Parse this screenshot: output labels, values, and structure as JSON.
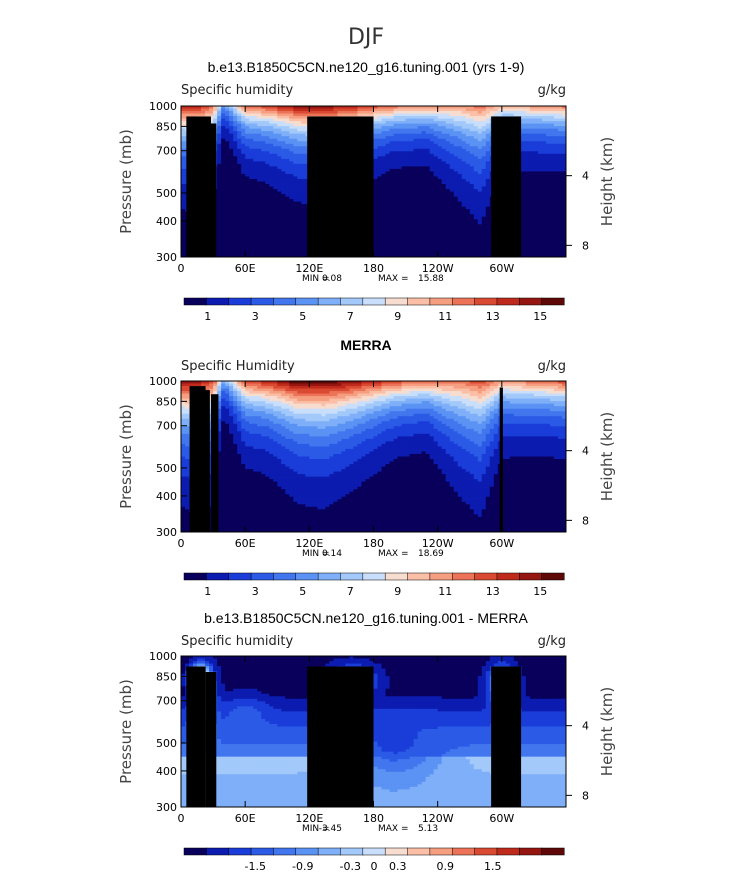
{
  "figure": {
    "season": "DJF",
    "variable_units": "g/kg"
  },
  "chart_data": [
    {
      "type": "heatmap",
      "title": "b.e13.B1850C5CN.ne120_g16.tuning.001 (yrs 1-9)",
      "field_label": "Specific humidity",
      "units": "g/kg",
      "xlabel": "",
      "ylabel": "Pressure (mb)",
      "ylabel_right": "Height (km)",
      "x_ticks": [
        "0",
        "60E",
        "120E",
        "180",
        "120W",
        "60W"
      ],
      "x_tick_values": [
        0,
        60,
        120,
        180,
        240,
        300
      ],
      "xlim": [
        0,
        360
      ],
      "y_ticks": [
        "300",
        "400",
        "500",
        "700",
        "850",
        "1000"
      ],
      "y_tick_values": [
        300,
        400,
        500,
        700,
        850,
        1000
      ],
      "ylim": [
        1000,
        300
      ],
      "height_ticks": [
        "8",
        "4"
      ],
      "height_tick_values": [
        8,
        4
      ],
      "stats": {
        "min_label": "MIN =",
        "min": "0.08",
        "max_label": "MAX =",
        "max": "15.88"
      },
      "colorbar": {
        "colors": [
          "#08005a",
          "#0c1bb0",
          "#1a3cd8",
          "#2a5ae6",
          "#4276ee",
          "#5b93f4",
          "#7eaff8",
          "#a3c9fb",
          "#c9defb",
          "#f7dcd0",
          "#fabfa6",
          "#f69e80",
          "#ec7357",
          "#da4a32",
          "#bf2a1c",
          "#951611",
          "#5e0808"
        ],
        "labels": [
          "1",
          "3",
          "5",
          "7",
          "9",
          "11",
          "13",
          "15"
        ],
        "label_positions": [
          1,
          3,
          5,
          7,
          9,
          11,
          13,
          15
        ],
        "range": [
          0,
          16
        ]
      },
      "profile": {
        "longitudes": [
          0,
          15,
          30,
          40,
          60,
          80,
          110,
          135,
          160,
          180,
          200,
          230,
          260,
          280,
          300,
          330,
          360
        ],
        "surface_gkg": [
          14,
          14,
          12,
          5,
          12,
          13,
          15,
          15,
          14,
          13,
          12,
          11,
          11,
          12,
          10,
          11,
          12
        ],
        "scale_height_km": [
          2.2,
          2.3,
          2.2,
          1.0,
          1.6,
          1.7,
          2.0,
          2.1,
          1.9,
          1.6,
          1.4,
          1.4,
          2.2,
          2.7,
          1.6,
          1.5,
          1.5
        ]
      },
      "terrain": [
        {
          "lon_start": 5,
          "lon_end": 28,
          "top_hpa": 920
        },
        {
          "lon_start": 25,
          "lon_end": 33,
          "top_hpa": 870
        },
        {
          "lon_start": 118,
          "lon_end": 180,
          "top_hpa": 920
        },
        {
          "lon_start": 290,
          "lon_end": 318,
          "top_hpa": 920
        }
      ]
    },
    {
      "type": "heatmap",
      "title": "MERRA",
      "field_label": "Specific Humidity",
      "units": "g/kg",
      "xlabel": "",
      "ylabel": "Pressure (mb)",
      "ylabel_right": "Height (km)",
      "x_ticks": [
        "0",
        "60E",
        "120E",
        "180",
        "120W",
        "60W"
      ],
      "x_tick_values": [
        0,
        60,
        120,
        180,
        240,
        300
      ],
      "xlim": [
        0,
        360
      ],
      "y_ticks": [
        "300",
        "400",
        "500",
        "700",
        "850",
        "1000"
      ],
      "y_tick_values": [
        300,
        400,
        500,
        700,
        850,
        1000
      ],
      "ylim": [
        1000,
        300
      ],
      "height_ticks": [
        "8",
        "4"
      ],
      "height_tick_values": [
        8,
        4
      ],
      "stats": {
        "min_label": "MIN =",
        "min": "0.14",
        "max_label": "MAX =",
        "max": "18.69"
      },
      "colorbar": {
        "colors": [
          "#08005a",
          "#0c1bb0",
          "#1a3cd8",
          "#2a5ae6",
          "#4276ee",
          "#5b93f4",
          "#7eaff8",
          "#a3c9fb",
          "#c9defb",
          "#f7dcd0",
          "#fabfa6",
          "#f69e80",
          "#ec7357",
          "#da4a32",
          "#bf2a1c",
          "#951611",
          "#5e0808"
        ],
        "labels": [
          "1",
          "3",
          "5",
          "7",
          "9",
          "11",
          "13",
          "15"
        ],
        "label_positions": [
          1,
          3,
          5,
          7,
          9,
          11,
          13,
          15
        ],
        "range": [
          0,
          16
        ]
      },
      "profile": {
        "longitudes": [
          0,
          15,
          30,
          40,
          60,
          80,
          110,
          135,
          160,
          180,
          200,
          230,
          260,
          280,
          300,
          330,
          360
        ],
        "surface_gkg": [
          15,
          15,
          13,
          6,
          13,
          14,
          16,
          16,
          15,
          14,
          13,
          12,
          12,
          13,
          11,
          12,
          13
        ],
        "scale_height_km": [
          2.6,
          2.8,
          2.7,
          1.1,
          1.9,
          2.0,
          2.5,
          2.6,
          2.3,
          2.0,
          1.7,
          1.6,
          2.6,
          3.0,
          1.8,
          1.7,
          1.7
        ]
      },
      "terrain": [
        {
          "lon_start": 8,
          "lon_end": 23,
          "top_hpa": 960
        },
        {
          "lon_start": 20,
          "lon_end": 27,
          "top_hpa": 930
        },
        {
          "lon_start": 28,
          "lon_end": 35,
          "top_hpa": 900
        },
        {
          "lon_start": 298,
          "lon_end": 301,
          "top_hpa": 950
        }
      ]
    },
    {
      "type": "heatmap",
      "title": "b.e13.B1850C5CN.ne120_g16.tuning.001 - MERRA",
      "field_label": "Specific humidity",
      "units": "g/kg",
      "xlabel": "",
      "ylabel": "Pressure (mb)",
      "ylabel_right": "Height (km)",
      "x_ticks": [
        "0",
        "60E",
        "120E",
        "180",
        "120W",
        "60W"
      ],
      "x_tick_values": [
        0,
        60,
        120,
        180,
        240,
        300
      ],
      "xlim": [
        0,
        360
      ],
      "y_ticks": [
        "300",
        "400",
        "500",
        "700",
        "850",
        "1000"
      ],
      "y_tick_values": [
        300,
        400,
        500,
        700,
        850,
        1000
      ],
      "ylim": [
        1000,
        300
      ],
      "height_ticks": [
        "8",
        "4"
      ],
      "height_tick_values": [
        8,
        4
      ],
      "stats": {
        "min_label": "MIN =",
        "min": "-3.45",
        "max_label": "MAX =",
        "max": "5.13"
      },
      "colorbar": {
        "colors": [
          "#08005a",
          "#0c1bb0",
          "#1a3cd8",
          "#2a5ae6",
          "#4276ee",
          "#5b93f4",
          "#7eaff8",
          "#a3c9fb",
          "#c9defb",
          "#f7dcd0",
          "#fabfa6",
          "#f69e80",
          "#ec7357",
          "#da4a32",
          "#bf2a1c",
          "#951611",
          "#5e0808"
        ],
        "labels": [
          "-1.5",
          "-0.9",
          "-0.3",
          "0",
          "0.3",
          "0.9",
          "1.5"
        ],
        "label_positions": [
          -1.5,
          -0.9,
          -0.3,
          0,
          0.3,
          0.9,
          1.5
        ],
        "range": [
          -2.4,
          2.4
        ]
      },
      "difference": {
        "deep_negative": -2.2,
        "shallow_negative": -0.5,
        "features": [
          {
            "lon": 18,
            "hpa": 840,
            "value": 2.4,
            "spread_lon": 8,
            "spread_hpa": 80
          },
          {
            "lon": 22,
            "hpa": 700,
            "value": -0.2,
            "spread_lon": 10,
            "spread_hpa": 180
          },
          {
            "lon": 300,
            "hpa": 800,
            "value": -0.2,
            "spread_lon": 12,
            "spread_hpa": 120
          },
          {
            "lon": 160,
            "hpa": 820,
            "value": -0.7,
            "spread_lon": 20,
            "spread_hpa": 100
          },
          {
            "lon": 200,
            "hpa": 500,
            "value": -1.6,
            "spread_lon": 45,
            "spread_hpa": 120
          },
          {
            "lon": 60,
            "hpa": 620,
            "value": -1.4,
            "spread_lon": 20,
            "spread_hpa": 100
          }
        ]
      },
      "terrain": [
        {
          "lon_start": 5,
          "lon_end": 23,
          "top_hpa": 920
        },
        {
          "lon_start": 23,
          "lon_end": 33,
          "top_hpa": 880
        },
        {
          "lon_start": 118,
          "lon_end": 180,
          "top_hpa": 920
        },
        {
          "lon_start": 290,
          "lon_end": 318,
          "top_hpa": 920
        }
      ]
    }
  ]
}
